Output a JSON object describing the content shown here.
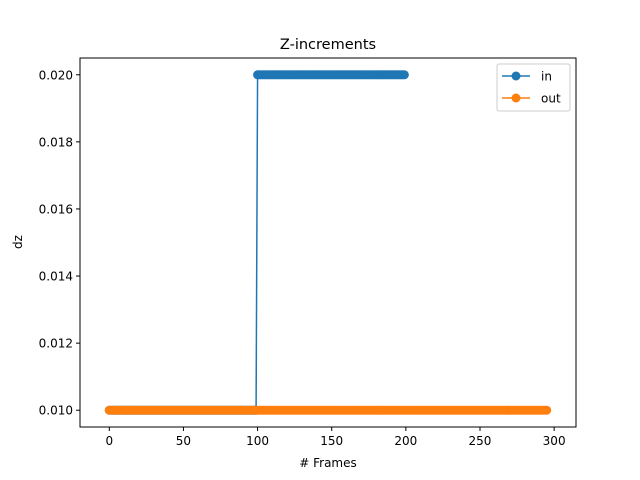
{
  "chart_data": {
    "type": "line",
    "title": "Z-increments",
    "xlabel": "# Frames",
    "ylabel": "dz",
    "xlim": [
      -19.75,
      314.75
    ],
    "ylim": [
      0.0095,
      0.0205
    ],
    "xticks": [
      0,
      50,
      100,
      150,
      200,
      250,
      300
    ],
    "xtick_labels": [
      "0",
      "50",
      "100",
      "150",
      "200",
      "250",
      "300"
    ],
    "yticks": [
      0.01,
      0.012,
      0.014,
      0.016,
      0.018,
      0.02
    ],
    "ytick_labels": [
      "0.010",
      "0.012",
      "0.014",
      "0.016",
      "0.018",
      "0.020"
    ],
    "legend_position": "top-right",
    "marker": "circle",
    "grid": false,
    "series": [
      {
        "name": "in",
        "color": "#1f77b4",
        "segments": [
          {
            "x_start": 0,
            "x_end": 99,
            "step": 1,
            "y": 0.01
          },
          {
            "x_start": 100,
            "x_end": 199,
            "step": 1,
            "y": 0.02
          }
        ]
      },
      {
        "name": "out",
        "color": "#ff7f0e",
        "segments": [
          {
            "x_start": 0,
            "x_end": 295,
            "step": 1,
            "y": 0.01
          }
        ]
      }
    ]
  }
}
